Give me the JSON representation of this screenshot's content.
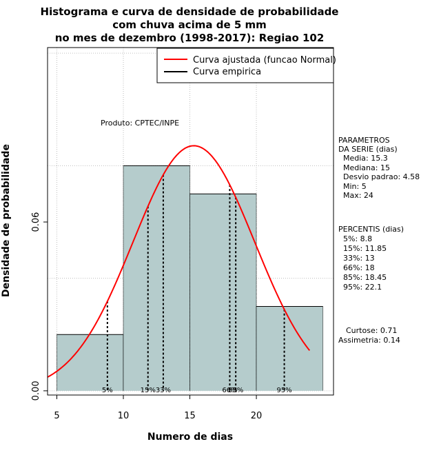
{
  "chart_data": {
    "type": "bar",
    "title_lines": [
      "Histograma e curva de densidade de probabilidade",
      "com chuva acima de 5 mm",
      "no mes de dezembro (1998-2017): Regiao 102"
    ],
    "xlabel": "Numero de dias",
    "ylabel": "Densidade de probabilidade",
    "xlim": [
      4.3,
      25.8
    ],
    "ylim": [
      -0.0015,
      0.122
    ],
    "x_ticks": [
      5,
      10,
      15,
      20
    ],
    "y_ticks": [
      0.0,
      0.06
    ],
    "y_tick_labels": [
      "0.00",
      "0.06"
    ],
    "grid": true,
    "bins": [
      {
        "x0": 5,
        "x1": 10,
        "density": 0.02
      },
      {
        "x0": 10,
        "x1": 15,
        "density": 0.08
      },
      {
        "x0": 15,
        "x1": 20,
        "density": 0.07
      },
      {
        "x0": 20,
        "x1": 25,
        "density": 0.03
      }
    ],
    "normal_curve": {
      "mean": 15.3,
      "sd": 4.58,
      "x_from": 4.3,
      "x_to": 24.0
    },
    "percentiles": [
      {
        "label": "5%",
        "x": 8.8
      },
      {
        "label": "15%",
        "x": 11.85
      },
      {
        "label": "33%",
        "x": 13
      },
      {
        "label": "66%",
        "x": 18
      },
      {
        "label": "85%",
        "x": 18.45
      },
      {
        "label": "95%",
        "x": 22.1
      }
    ],
    "legend": {
      "position": "top-right",
      "entries": [
        {
          "label": "Curva ajustada (funcao Normal)",
          "color": "#ff0000"
        },
        {
          "label": "Curva empirica",
          "color": "#000000"
        }
      ]
    },
    "annotation": "Produto: CPTEC/INPE",
    "bar_fill": "#b5cccc",
    "curve_color": "#ff0000"
  },
  "side_panel": {
    "params_lines": [
      "PARAMETROS",
      "DA SERIE (dias)",
      "  Media: 15.3",
      "  Mediana: 15",
      "  Desvio padrao: 4.58",
      "  Min: 5",
      "  Max: 24"
    ],
    "percentis_lines": [
      "PERCENTIS (dias)",
      "  5%: 8.8",
      "  15%: 11.85",
      "  33%: 13",
      "  66%: 18",
      "  85%: 18.45",
      "  95%: 22.1"
    ],
    "curtose": "Curtose: 0.71",
    "assimetria": "Assimetria: 0.14"
  }
}
